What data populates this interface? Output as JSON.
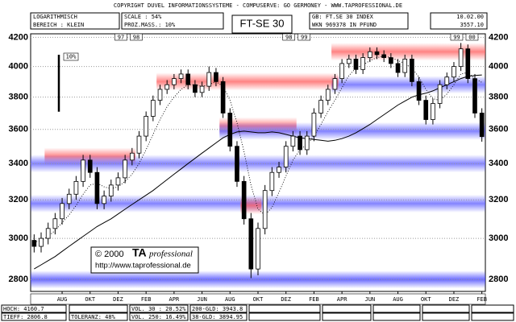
{
  "header": {
    "copyright": "COPYRIGHT  DUVEL INFORMATIONSSYSTEME - COMPUSERVE: GO GERMONEY - WWW.TAPROFESSIONAL.DE",
    "left": [
      "LOGARITHMISCH",
      "BEREICH : KLEIN"
    ],
    "middle": [
      "SCALE : 54%",
      "PROZ.MASS.: 10%"
    ],
    "right": [
      "GB:  FT.SE 30 INDEX",
      "WKN 969378   IN PFUND"
    ],
    "far": [
      "10.02.00",
      "3557.10"
    ]
  },
  "footer": {
    "rows": [
      [
        "HOCH: 4160.7",
        "VOL. 30 : 20.52%",
        "200-GLD: 3943.8"
      ],
      [
        "TIEFF: 2806.8",
        "TOLERANZ: 48%",
        "VOL. 250: 16.49%",
        "38-GLD: 3894.95"
      ]
    ]
  },
  "watermark": {
    "year": "© 2000",
    "brand": "TA",
    "brand_suffix": "professional",
    "url": "http://www.taprofessional.de"
  },
  "chart_data": {
    "type": "candlestick",
    "title": "FT-SE 30",
    "log_scale": true,
    "grid": true,
    "categories": [
      null,
      null,
      null,
      null,
      "AUG",
      null,
      null,
      null,
      "OKT",
      null,
      null,
      null,
      "DEZ",
      null,
      null,
      null,
      "FEB",
      null,
      null,
      null,
      "APR",
      null,
      null,
      null,
      "JUN",
      null,
      null,
      null,
      "AUG",
      null,
      null,
      null,
      "OKT",
      null,
      null,
      null,
      "DEZ",
      null,
      null,
      null,
      "FEB",
      null,
      null,
      null,
      "APR",
      null,
      null,
      null,
      "JUN",
      null,
      null,
      null,
      "AUG",
      null,
      null,
      null,
      "OKT",
      null,
      null,
      null,
      "DEZ",
      null,
      null,
      null,
      "FEB"
    ],
    "year_marks": [
      null,
      null,
      null,
      null,
      null,
      null,
      null,
      null,
      null,
      null,
      null,
      null,
      null,
      null,
      [
        "97",
        "98"
      ],
      null,
      null,
      null,
      null,
      null,
      null,
      null,
      null,
      null,
      null,
      null,
      null,
      null,
      null,
      null,
      null,
      null,
      null,
      null,
      null,
      null,
      null,
      null,
      [
        "98",
        "99"
      ],
      null,
      null,
      null,
      null,
      null,
      null,
      null,
      null,
      null,
      null,
      null,
      null,
      null,
      null,
      null,
      null,
      null,
      null,
      null,
      null,
      null,
      null,
      null,
      [
        "99",
        "00"
      ],
      null,
      null
    ],
    "open": [
      2990,
      2960,
      3000,
      3050,
      3100,
      3180,
      3230,
      3300,
      3420,
      3350,
      3180,
      3220,
      3280,
      3320,
      3420,
      3460,
      3560,
      3680,
      3780,
      3850,
      3880,
      3920,
      3950,
      3880,
      3830,
      3870,
      3960,
      3900,
      3700,
      3500,
      3300,
      3100,
      2850,
      3050,
      3250,
      3350,
      3380,
      3500,
      3560,
      3480,
      3560,
      3700,
      3780,
      3850,
      3920,
      4020,
      4050,
      3980,
      4060,
      4100,
      4080,
      4060,
      4020,
      3960,
      4050,
      3900,
      3780,
      3660,
      3760,
      3880,
      3930,
      4000,
      4120,
      3920,
      3700
    ],
    "high": [
      3020,
      3030,
      3080,
      3130,
      3210,
      3260,
      3330,
      3450,
      3450,
      3380,
      3250,
      3310,
      3350,
      3450,
      3490,
      3590,
      3710,
      3810,
      3880,
      3910,
      3950,
      3980,
      3980,
      3910,
      3900,
      4000,
      3990,
      3930,
      3730,
      3530,
      3330,
      3130,
      3080,
      3280,
      3380,
      3410,
      3530,
      3590,
      3590,
      3590,
      3730,
      3810,
      3880,
      3950,
      4050,
      4080,
      4080,
      4090,
      4130,
      4130,
      4110,
      4090,
      4050,
      4080,
      4080,
      3930,
      3810,
      3790,
      3910,
      3960,
      4030,
      4160.7,
      4150,
      3950,
      3730
    ],
    "low": [
      2930,
      2930,
      2970,
      3020,
      3070,
      3150,
      3200,
      3270,
      3320,
      3150,
      3150,
      3190,
      3250,
      3290,
      3390,
      3430,
      3530,
      3650,
      3750,
      3820,
      3850,
      3890,
      3850,
      3800,
      3800,
      3840,
      3870,
      3670,
      3470,
      3270,
      3070,
      2806.8,
      2820,
      3020,
      3220,
      3320,
      3350,
      3470,
      3450,
      3450,
      3530,
      3670,
      3750,
      3820,
      3890,
      3990,
      3950,
      3950,
      4030,
      4050,
      4030,
      3990,
      3930,
      3930,
      3870,
      3750,
      3630,
      3630,
      3730,
      3850,
      3900,
      3970,
      3890,
      3670,
      3527
    ],
    "close": [
      2960,
      3000,
      3050,
      3100,
      3180,
      3230,
      3300,
      3420,
      3350,
      3180,
      3220,
      3280,
      3320,
      3420,
      3460,
      3560,
      3680,
      3780,
      3850,
      3880,
      3920,
      3950,
      3880,
      3830,
      3870,
      3960,
      3900,
      3700,
      3500,
      3300,
      3100,
      2850,
      3050,
      3250,
      3350,
      3380,
      3500,
      3560,
      3480,
      3560,
      3700,
      3780,
      3850,
      3920,
      4020,
      4050,
      3980,
      4060,
      4100,
      4080,
      4060,
      4020,
      3960,
      4050,
      3900,
      3780,
      3660,
      3760,
      3880,
      3930,
      4000,
      4120,
      3920,
      3700,
      3557.1
    ],
    "moving_averages": [
      {
        "style": "solid",
        "color": "#000000",
        "values": [
          2850,
          2870,
          2890,
          2910,
          2935,
          2960,
          2985,
          3010,
          3035,
          3060,
          3080,
          3100,
          3125,
          3150,
          3175,
          3200,
          3225,
          3250,
          3280,
          3310,
          3340,
          3370,
          3400,
          3430,
          3460,
          3490,
          3520,
          3550,
          3570,
          3585,
          3590,
          3585,
          3580,
          3580,
          3585,
          3580,
          3570,
          3560,
          3550,
          3545,
          3540,
          3535,
          3530,
          3535,
          3545,
          3560,
          3580,
          3605,
          3630,
          3660,
          3690,
          3720,
          3750,
          3775,
          3800,
          3815,
          3825,
          3840,
          3860,
          3880,
          3900,
          3920,
          3935,
          3940,
          3943.8
        ]
      },
      {
        "style": "dotted",
        "color": "#000000",
        "values": [
          2980,
          2990,
          3010,
          3040,
          3080,
          3120,
          3170,
          3230,
          3280,
          3290,
          3270,
          3260,
          3270,
          3300,
          3340,
          3400,
          3480,
          3570,
          3660,
          3740,
          3800,
          3850,
          3880,
          3880,
          3870,
          3880,
          3900,
          3870,
          3780,
          3640,
          3470,
          3280,
          3150,
          3120,
          3160,
          3240,
          3330,
          3420,
          3480,
          3510,
          3560,
          3630,
          3710,
          3780,
          3860,
          3940,
          3990,
          4010,
          4040,
          4060,
          4070,
          4060,
          4040,
          4020,
          3990,
          3930,
          3850,
          3790,
          3780,
          3820,
          3880,
          3950,
          3960,
          3920,
          3894.95
        ]
      }
    ],
    "zones": [
      {
        "level": 4100,
        "color": "#ff5a5a",
        "from": 43,
        "to": 64
      },
      {
        "level": 3880,
        "color": "#5a5aff",
        "from": 43,
        "to": 64
      },
      {
        "level": 3900,
        "color": "#ff5a5a",
        "from": 18,
        "to": 43
      },
      {
        "level": 3620,
        "color": "#ff5a5a",
        "from": 27,
        "to": 37
      },
      {
        "level": 3590,
        "color": "#5a5aff",
        "from": 27,
        "to": 64
      },
      {
        "level": 3440,
        "color": "#ff5a5a",
        "from": 2,
        "to": 14
      },
      {
        "level": 3400,
        "color": "#5a5aff",
        "from": 0,
        "to": 64
      },
      {
        "level": 3180,
        "color": "#5a5aff",
        "from": 0,
        "to": 64
      },
      {
        "level": 3170,
        "color": "#ff5a5a",
        "from": 30,
        "to": 32
      },
      {
        "level": 2800,
        "color": "#3c3cff",
        "from": 0,
        "to": 64
      }
    ],
    "scale_bar": {
      "label": "10%",
      "percent": 10
    },
    "ylim": [
      2745,
      4225
    ],
    "yticks": [
      2800,
      3000,
      3200,
      3400,
      3600,
      3800,
      4000,
      4200
    ]
  }
}
